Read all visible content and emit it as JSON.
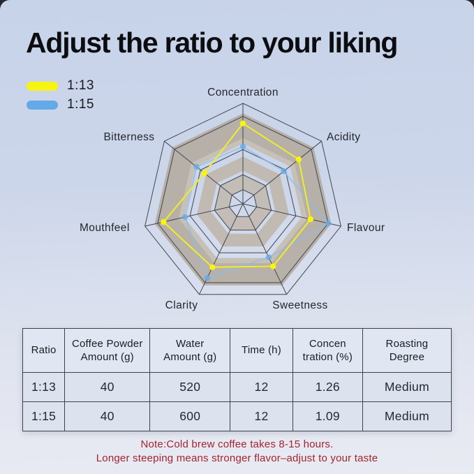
{
  "page": {
    "title": "Adjust the ratio to your liking",
    "note_line1": "Note:Cold brew coffee takes 8-15 hours.",
    "note_line2": "Longer steeping means stronger flavor–adjust to your taste"
  },
  "legend": {
    "items": [
      {
        "label": "1:13",
        "color": "#f7f312"
      },
      {
        "label": "1:15",
        "color": "#64aae8"
      }
    ]
  },
  "chart_data": {
    "type": "radar",
    "title": "",
    "categories": [
      "Concentration",
      "Acidity",
      "Flavour",
      "Sweetness",
      "Clarity",
      "Mouthfeel",
      "Bitterness"
    ],
    "series": [
      {
        "name": "1:13",
        "color": "#f0eb2e",
        "point_color": "#f8f410",
        "line_opacity": 1,
        "values": [
          8.0,
          7.1,
          6.9,
          6.9,
          7.0,
          8.1,
          4.9
        ]
      },
      {
        "name": "1:15",
        "color": "#8cbdea",
        "point_color": "#64aae8",
        "line_opacity": 0.75,
        "values": [
          5.7,
          5.2,
          8.7,
          5.9,
          8.2,
          5.9,
          5.9
        ]
      }
    ],
    "max": 10,
    "gridline_levels": [
      1.4,
      2.9,
      5.4,
      8.7,
      10
    ],
    "bands": [
      {
        "lo": 1.4,
        "hi": 2.9,
        "color": "#c2bbb2"
      },
      {
        "lo": 3.3,
        "hi": 4.7,
        "color": "#bfb7ae"
      },
      {
        "lo": 6.0,
        "hi": 9.0,
        "color": "#b4aca3"
      },
      {
        "lo": 6.0,
        "hi": 6.55,
        "color": "#c8c1b8"
      }
    ],
    "grid": true,
    "legend_position": "top-left"
  },
  "table": {
    "headers": [
      "Ratio",
      "Coffee Powder\nAmount (g)",
      "Water\nAmount (g)",
      "Time (h)",
      "Concen\ntration (%)",
      "Roasting\nDegree"
    ],
    "rows": [
      [
        "1:13",
        "40",
        "520",
        "12",
        "1.26",
        "Medium"
      ],
      [
        "1:15",
        "40",
        "600",
        "12",
        "1.09",
        "Medium"
      ]
    ]
  },
  "colors": {
    "gridline": "#42464f",
    "background_top": "#c7d3e9",
    "background_bottom": "#e9ebf3",
    "note_red": "#a2242f",
    "table_border": "#3e424b",
    "header_bg": "#e1e7f2",
    "row_bg": "#dde3ee"
  }
}
